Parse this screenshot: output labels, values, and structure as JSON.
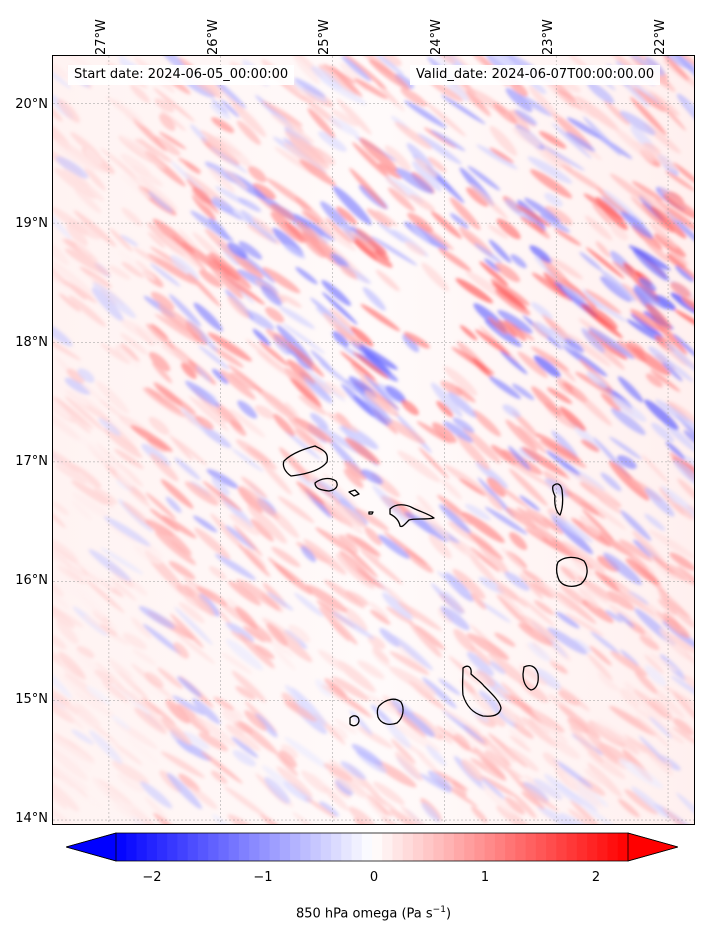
{
  "header": {
    "start_date": "Start date: 2024-06-05_00:00:00",
    "valid_date": "Valid_date: 2024-06-07T00:00:00.00"
  },
  "map": {
    "longitude_labels": [
      "27°W",
      "26°W",
      "25°W",
      "24°W",
      "23°W",
      "22°W"
    ],
    "latitude_labels": [
      "20°N",
      "19°N",
      "18°N",
      "17°N",
      "16°N",
      "15°N",
      "14°N"
    ],
    "lon_range": [
      -27.5,
      -21.75
    ],
    "lat_range": [
      13.95,
      20.4
    ],
    "gridlines": true,
    "field": "850 hPa omega",
    "negative_color": "#0000ff",
    "positive_color": "#ff0000",
    "coastline_color": "#000000"
  },
  "colorbar": {
    "ticks": [
      "−2",
      "−1",
      "0",
      "1",
      "2"
    ],
    "range": [
      -2.5,
      2.5
    ],
    "label_prefix": "850 hPa omega (Pa s",
    "label_exp": "−1",
    "label_suffix": ")"
  }
}
